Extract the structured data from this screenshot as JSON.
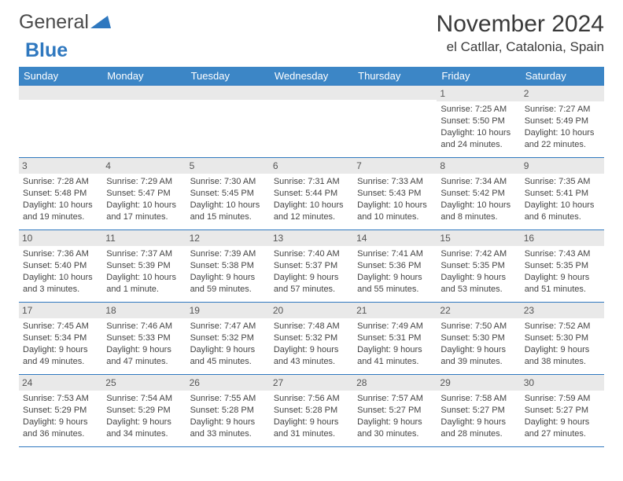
{
  "brand": {
    "part1": "General",
    "part2": "Blue"
  },
  "title": "November 2024",
  "location": "el Catllar, Catalonia, Spain",
  "colors": {
    "header_bg": "#3c86c6",
    "header_fg": "#ffffff",
    "daynum_bg": "#e9e9e9",
    "border": "#2f78bf",
    "text": "#444444"
  },
  "day_headers": [
    "Sunday",
    "Monday",
    "Tuesday",
    "Wednesday",
    "Thursday",
    "Friday",
    "Saturday"
  ],
  "weeks": [
    [
      {
        "n": "",
        "sr": "",
        "ss": "",
        "dl": ""
      },
      {
        "n": "",
        "sr": "",
        "ss": "",
        "dl": ""
      },
      {
        "n": "",
        "sr": "",
        "ss": "",
        "dl": ""
      },
      {
        "n": "",
        "sr": "",
        "ss": "",
        "dl": ""
      },
      {
        "n": "",
        "sr": "",
        "ss": "",
        "dl": ""
      },
      {
        "n": "1",
        "sr": "Sunrise: 7:25 AM",
        "ss": "Sunset: 5:50 PM",
        "dl": "Daylight: 10 hours and 24 minutes."
      },
      {
        "n": "2",
        "sr": "Sunrise: 7:27 AM",
        "ss": "Sunset: 5:49 PM",
        "dl": "Daylight: 10 hours and 22 minutes."
      }
    ],
    [
      {
        "n": "3",
        "sr": "Sunrise: 7:28 AM",
        "ss": "Sunset: 5:48 PM",
        "dl": "Daylight: 10 hours and 19 minutes."
      },
      {
        "n": "4",
        "sr": "Sunrise: 7:29 AM",
        "ss": "Sunset: 5:47 PM",
        "dl": "Daylight: 10 hours and 17 minutes."
      },
      {
        "n": "5",
        "sr": "Sunrise: 7:30 AM",
        "ss": "Sunset: 5:45 PM",
        "dl": "Daylight: 10 hours and 15 minutes."
      },
      {
        "n": "6",
        "sr": "Sunrise: 7:31 AM",
        "ss": "Sunset: 5:44 PM",
        "dl": "Daylight: 10 hours and 12 minutes."
      },
      {
        "n": "7",
        "sr": "Sunrise: 7:33 AM",
        "ss": "Sunset: 5:43 PM",
        "dl": "Daylight: 10 hours and 10 minutes."
      },
      {
        "n": "8",
        "sr": "Sunrise: 7:34 AM",
        "ss": "Sunset: 5:42 PM",
        "dl": "Daylight: 10 hours and 8 minutes."
      },
      {
        "n": "9",
        "sr": "Sunrise: 7:35 AM",
        "ss": "Sunset: 5:41 PM",
        "dl": "Daylight: 10 hours and 6 minutes."
      }
    ],
    [
      {
        "n": "10",
        "sr": "Sunrise: 7:36 AM",
        "ss": "Sunset: 5:40 PM",
        "dl": "Daylight: 10 hours and 3 minutes."
      },
      {
        "n": "11",
        "sr": "Sunrise: 7:37 AM",
        "ss": "Sunset: 5:39 PM",
        "dl": "Daylight: 10 hours and 1 minute."
      },
      {
        "n": "12",
        "sr": "Sunrise: 7:39 AM",
        "ss": "Sunset: 5:38 PM",
        "dl": "Daylight: 9 hours and 59 minutes."
      },
      {
        "n": "13",
        "sr": "Sunrise: 7:40 AM",
        "ss": "Sunset: 5:37 PM",
        "dl": "Daylight: 9 hours and 57 minutes."
      },
      {
        "n": "14",
        "sr": "Sunrise: 7:41 AM",
        "ss": "Sunset: 5:36 PM",
        "dl": "Daylight: 9 hours and 55 minutes."
      },
      {
        "n": "15",
        "sr": "Sunrise: 7:42 AM",
        "ss": "Sunset: 5:35 PM",
        "dl": "Daylight: 9 hours and 53 minutes."
      },
      {
        "n": "16",
        "sr": "Sunrise: 7:43 AM",
        "ss": "Sunset: 5:35 PM",
        "dl": "Daylight: 9 hours and 51 minutes."
      }
    ],
    [
      {
        "n": "17",
        "sr": "Sunrise: 7:45 AM",
        "ss": "Sunset: 5:34 PM",
        "dl": "Daylight: 9 hours and 49 minutes."
      },
      {
        "n": "18",
        "sr": "Sunrise: 7:46 AM",
        "ss": "Sunset: 5:33 PM",
        "dl": "Daylight: 9 hours and 47 minutes."
      },
      {
        "n": "19",
        "sr": "Sunrise: 7:47 AM",
        "ss": "Sunset: 5:32 PM",
        "dl": "Daylight: 9 hours and 45 minutes."
      },
      {
        "n": "20",
        "sr": "Sunrise: 7:48 AM",
        "ss": "Sunset: 5:32 PM",
        "dl": "Daylight: 9 hours and 43 minutes."
      },
      {
        "n": "21",
        "sr": "Sunrise: 7:49 AM",
        "ss": "Sunset: 5:31 PM",
        "dl": "Daylight: 9 hours and 41 minutes."
      },
      {
        "n": "22",
        "sr": "Sunrise: 7:50 AM",
        "ss": "Sunset: 5:30 PM",
        "dl": "Daylight: 9 hours and 39 minutes."
      },
      {
        "n": "23",
        "sr": "Sunrise: 7:52 AM",
        "ss": "Sunset: 5:30 PM",
        "dl": "Daylight: 9 hours and 38 minutes."
      }
    ],
    [
      {
        "n": "24",
        "sr": "Sunrise: 7:53 AM",
        "ss": "Sunset: 5:29 PM",
        "dl": "Daylight: 9 hours and 36 minutes."
      },
      {
        "n": "25",
        "sr": "Sunrise: 7:54 AM",
        "ss": "Sunset: 5:29 PM",
        "dl": "Daylight: 9 hours and 34 minutes."
      },
      {
        "n": "26",
        "sr": "Sunrise: 7:55 AM",
        "ss": "Sunset: 5:28 PM",
        "dl": "Daylight: 9 hours and 33 minutes."
      },
      {
        "n": "27",
        "sr": "Sunrise: 7:56 AM",
        "ss": "Sunset: 5:28 PM",
        "dl": "Daylight: 9 hours and 31 minutes."
      },
      {
        "n": "28",
        "sr": "Sunrise: 7:57 AM",
        "ss": "Sunset: 5:27 PM",
        "dl": "Daylight: 9 hours and 30 minutes."
      },
      {
        "n": "29",
        "sr": "Sunrise: 7:58 AM",
        "ss": "Sunset: 5:27 PM",
        "dl": "Daylight: 9 hours and 28 minutes."
      },
      {
        "n": "30",
        "sr": "Sunrise: 7:59 AM",
        "ss": "Sunset: 5:27 PM",
        "dl": "Daylight: 9 hours and 27 minutes."
      }
    ]
  ]
}
